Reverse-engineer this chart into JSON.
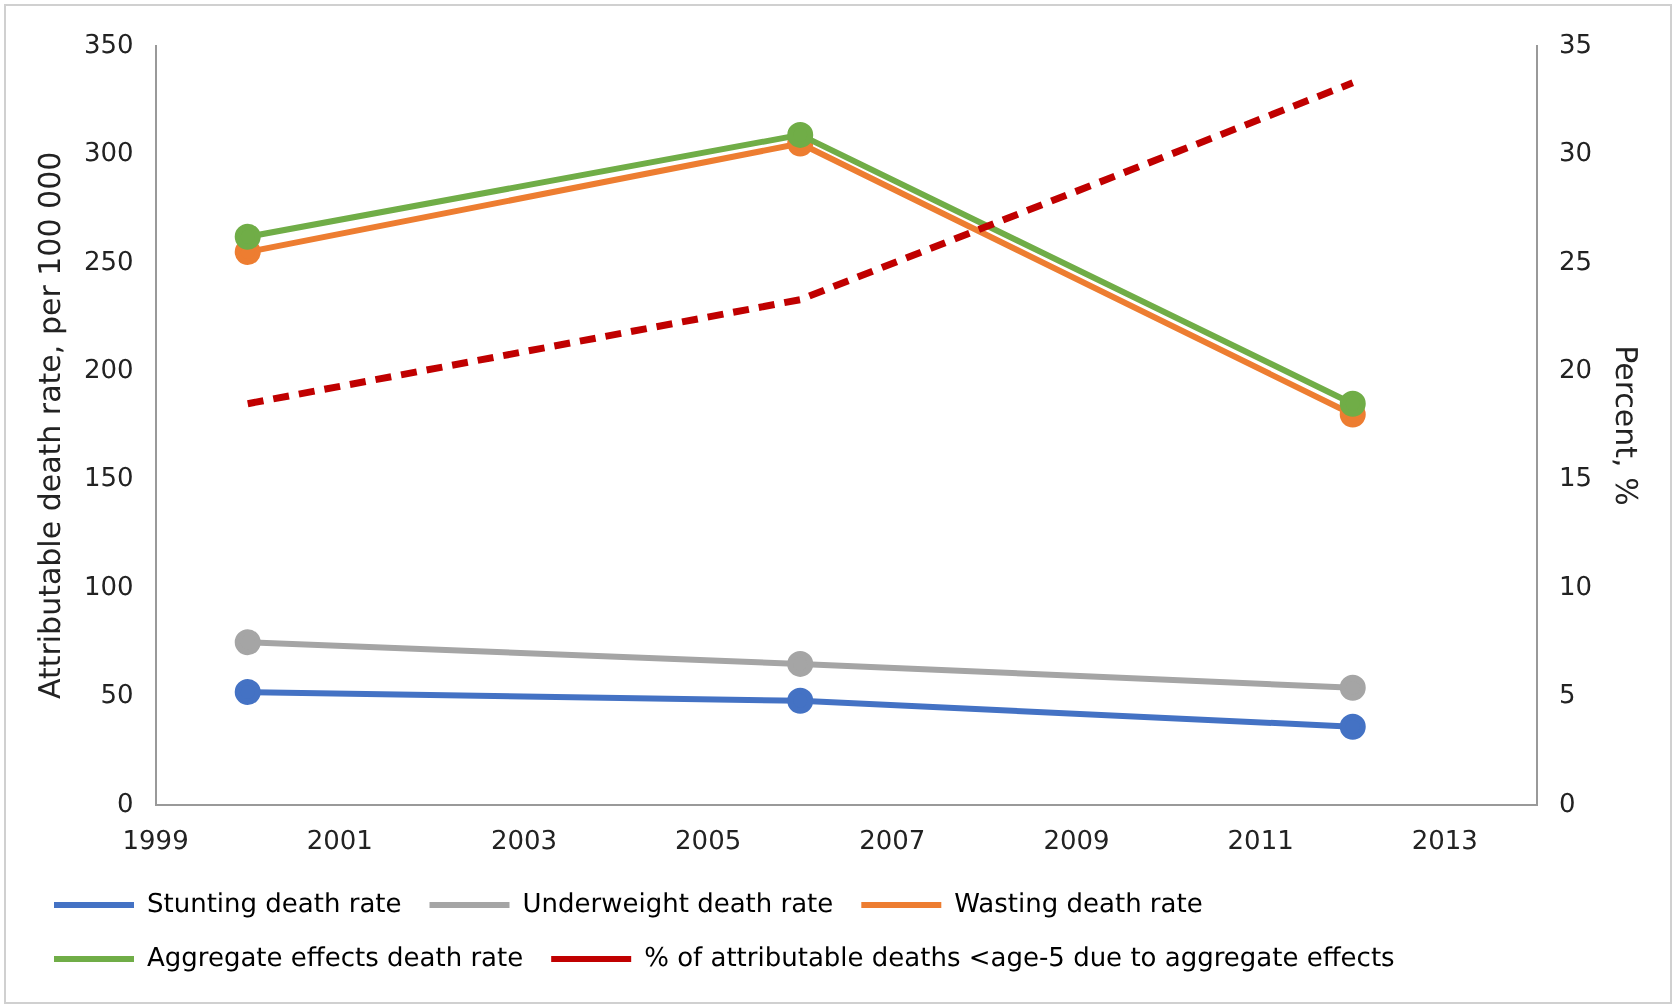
{
  "chart_data": {
    "type": "line",
    "ylabel": "Attributable death rate, per 100 000",
    "y2label": "Percent, %",
    "x": [
      2000,
      2006,
      2012
    ],
    "xlim": [
      1999,
      2014
    ],
    "xticks": [
      1999,
      2001,
      2003,
      2005,
      2007,
      2009,
      2011,
      2013
    ],
    "ylim": [
      0,
      350
    ],
    "yticks": [
      0,
      50,
      100,
      150,
      200,
      250,
      300,
      350
    ],
    "y2lim": [
      0,
      35
    ],
    "y2ticks": [
      0,
      5,
      10,
      15,
      20,
      25,
      30,
      35
    ],
    "grid": false,
    "legend": "bottom",
    "marker": "circle",
    "line_style": "solid",
    "series": [
      {
        "name": "Stunting death rate",
        "color": "#4472c4",
        "values": [
          52,
          48,
          36
        ]
      },
      {
        "name": "Underweight death rate",
        "color": "#a5a5a5",
        "values": [
          75,
          65,
          54
        ]
      },
      {
        "name": "Wasting death rate",
        "color": "#ed7d31",
        "values": [
          255,
          305,
          180
        ]
      },
      {
        "name": "Aggregate effects death rate",
        "color": "#70ad47",
        "values": [
          262,
          309,
          185
        ]
      },
      {
        "name": "% of attributable deaths <age-5 due to aggregate effects",
        "color": "#c00000",
        "values": [
          18.5,
          23.3,
          33.3
        ],
        "axis": "y2",
        "line_style": "dashed",
        "marker": "none"
      }
    ]
  }
}
